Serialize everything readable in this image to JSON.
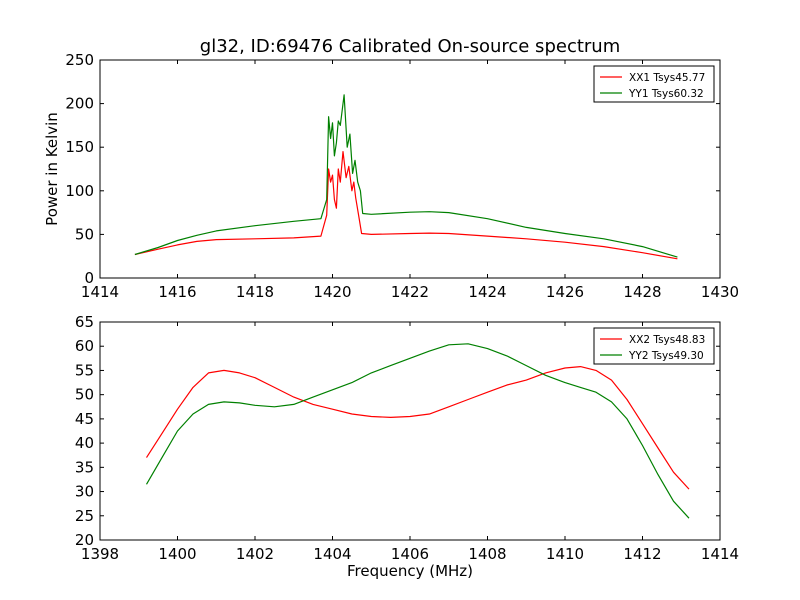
{
  "figure": {
    "title": "gl32, ID:69476 Calibrated On-source spectrum"
  },
  "chart_data": [
    {
      "type": "line",
      "title": "gl32, ID:69476 Calibrated On-source spectrum",
      "xlabel": "",
      "ylabel": "Power in Kelvin",
      "xlim": [
        1414,
        1430
      ],
      "ylim": [
        0,
        250
      ],
      "xticks": [
        1414,
        1416,
        1418,
        1420,
        1422,
        1424,
        1426,
        1428,
        1430
      ],
      "yticks": [
        0,
        50,
        100,
        150,
        200,
        250
      ],
      "grid": false,
      "legend_position": "top-right",
      "series": [
        {
          "name": "XX1 Tsys45.77",
          "color": "#ff0000",
          "x": [
            1414.9,
            1415.5,
            1416,
            1416.5,
            1417,
            1418,
            1419,
            1419.7,
            1419.85,
            1419.9,
            1419.95,
            1420.0,
            1420.05,
            1420.1,
            1420.15,
            1420.2,
            1420.27,
            1420.35,
            1420.42,
            1420.5,
            1420.55,
            1420.6,
            1420.68,
            1420.75,
            1421,
            1422,
            1422.5,
            1423,
            1424,
            1425,
            1426,
            1427,
            1428,
            1428.9
          ],
          "y": [
            27,
            33,
            38,
            42,
            44,
            45,
            46,
            48,
            72,
            125,
            110,
            118,
            90,
            80,
            125,
            110,
            145,
            115,
            128,
            100,
            110,
            92,
            70,
            51,
            50,
            51,
            51.5,
            51,
            48,
            45,
            41,
            36,
            29,
            22
          ]
        },
        {
          "name": "YY1 Tsys60.32",
          "color": "#008000",
          "x": [
            1414.9,
            1415.5,
            1416,
            1416.5,
            1417,
            1418,
            1419,
            1419.7,
            1419.85,
            1419.9,
            1419.95,
            1420.0,
            1420.05,
            1420.1,
            1420.15,
            1420.2,
            1420.3,
            1420.38,
            1420.45,
            1420.52,
            1420.58,
            1420.65,
            1420.72,
            1420.78,
            1421,
            1422,
            1422.5,
            1423,
            1424,
            1425,
            1426,
            1427,
            1428,
            1428.9
          ],
          "y": [
            27,
            35,
            43,
            49,
            54,
            60,
            65,
            68,
            90,
            185,
            160,
            178,
            140,
            155,
            180,
            175,
            210,
            150,
            165,
            120,
            135,
            110,
            100,
            74,
            73,
            75.5,
            76,
            75,
            68,
            58,
            51,
            45,
            36,
            24
          ]
        }
      ]
    },
    {
      "type": "line",
      "xlabel": "Frequency (MHz)",
      "ylabel": "",
      "xlim": [
        1398,
        1414
      ],
      "ylim": [
        20,
        65
      ],
      "xticks": [
        1398,
        1400,
        1402,
        1404,
        1406,
        1408,
        1410,
        1412,
        1414
      ],
      "yticks": [
        20,
        25,
        30,
        35,
        40,
        45,
        50,
        55,
        60,
        65
      ],
      "grid": false,
      "legend_position": "top-right",
      "series": [
        {
          "name": "XX2 Tsys48.83",
          "color": "#ff0000",
          "x": [
            1399.2,
            1399.6,
            1400,
            1400.4,
            1400.8,
            1401.2,
            1401.6,
            1402,
            1402.5,
            1403,
            1403.5,
            1404,
            1404.5,
            1405,
            1405.5,
            1406,
            1406.5,
            1407,
            1407.5,
            1408,
            1408.5,
            1409,
            1409.5,
            1410,
            1410.4,
            1410.8,
            1411.2,
            1411.6,
            1412,
            1412.4,
            1412.8,
            1413.2
          ],
          "y": [
            37,
            42,
            47,
            51.5,
            54.5,
            55,
            54.5,
            53.5,
            51.5,
            49.5,
            48,
            47,
            46,
            45.5,
            45.3,
            45.5,
            46,
            47.5,
            49,
            50.5,
            52,
            53,
            54.5,
            55.5,
            55.8,
            55,
            53,
            49,
            44,
            39,
            34,
            30.5
          ]
        },
        {
          "name": "YY2 Tsys49.30",
          "color": "#008000",
          "x": [
            1399.2,
            1399.6,
            1400,
            1400.4,
            1400.8,
            1401.2,
            1401.6,
            1402,
            1402.5,
            1403,
            1403.5,
            1404,
            1404.5,
            1405,
            1405.5,
            1406,
            1406.5,
            1407,
            1407.5,
            1408,
            1408.5,
            1409,
            1409.5,
            1410,
            1410.4,
            1410.8,
            1411.2,
            1411.6,
            1412,
            1412.4,
            1412.8,
            1413.2
          ],
          "y": [
            31.5,
            37,
            42.5,
            46,
            48,
            48.5,
            48.3,
            47.8,
            47.5,
            48,
            49.5,
            51,
            52.5,
            54.5,
            56,
            57.5,
            59,
            60.3,
            60.5,
            59.5,
            58,
            56,
            54,
            52.5,
            51.5,
            50.5,
            48.5,
            45,
            39.5,
            33.5,
            28,
            24.5
          ]
        }
      ]
    }
  ]
}
